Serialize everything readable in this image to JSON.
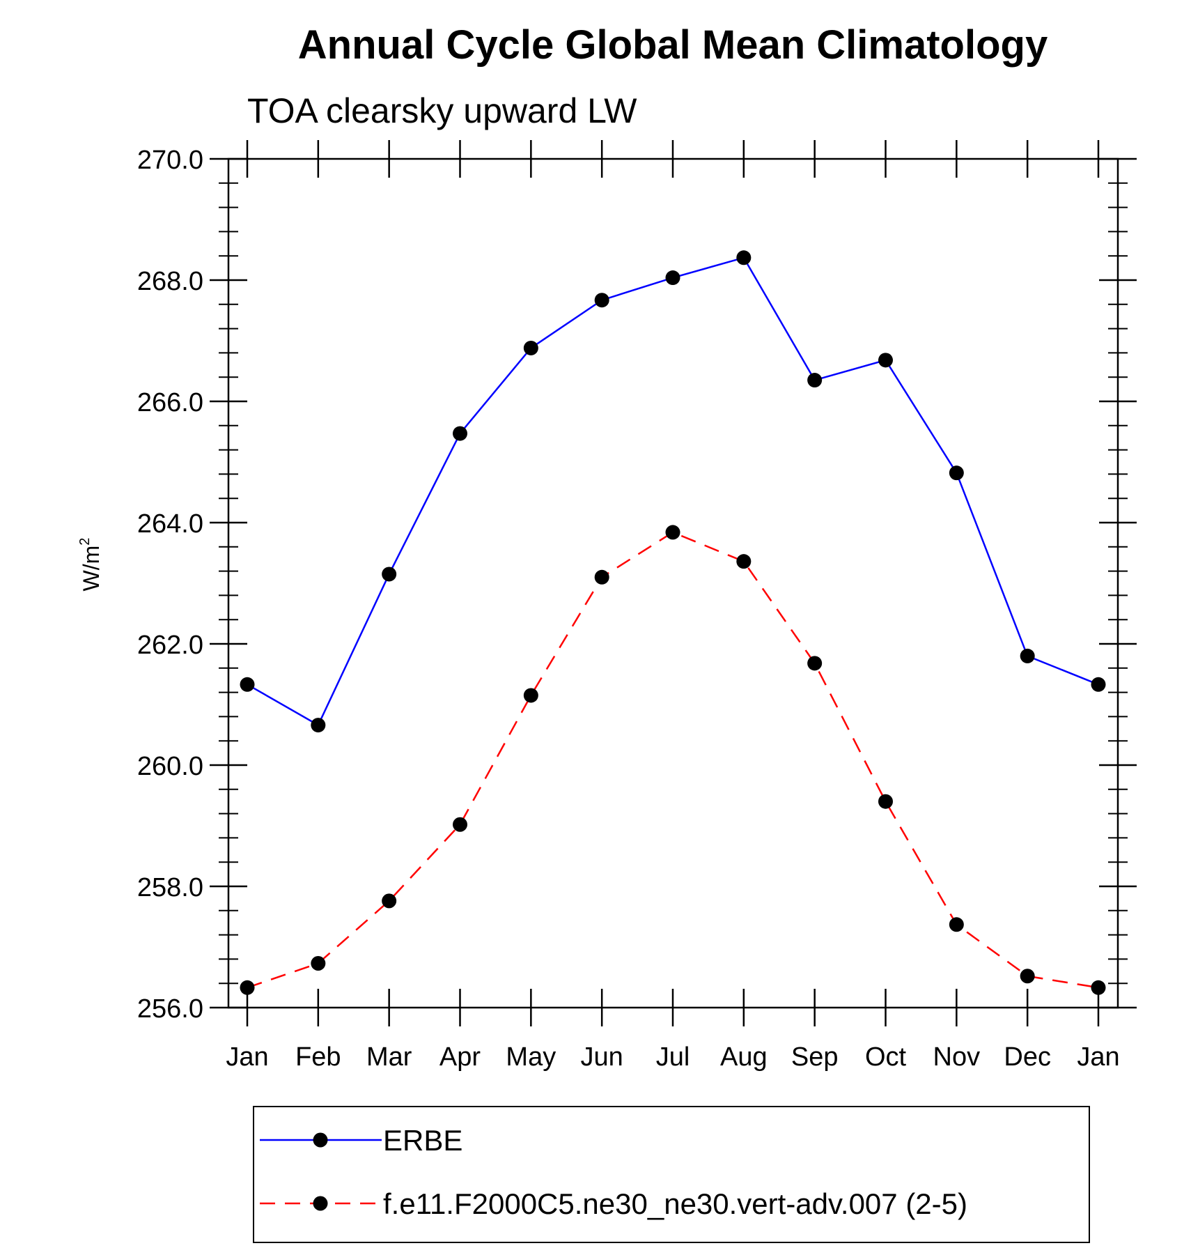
{
  "chart_data": {
    "type": "line",
    "title": "Annual Cycle Global Mean Climatology",
    "subtitle": "TOA clearsky upward LW",
    "ylabel": "W/m",
    "ylabel_sup": "2",
    "ylim": [
      256,
      270
    ],
    "yticks": [
      "256.0",
      "258.0",
      "260.0",
      "262.0",
      "264.0",
      "266.0",
      "268.0",
      "270.0"
    ],
    "categories": [
      "Jan",
      "Feb",
      "Mar",
      "Apr",
      "May",
      "Jun",
      "Jul",
      "Aug",
      "Sep",
      "Oct",
      "Nov",
      "Dec",
      "Jan"
    ],
    "series": [
      {
        "name": "ERBE",
        "color": "#0000ff",
        "dash": "solid",
        "values": [
          261.33,
          260.66,
          263.15,
          265.47,
          266.88,
          267.67,
          268.04,
          268.37,
          266.35,
          266.68,
          264.82,
          261.8,
          261.33
        ]
      },
      {
        "name": "f.e11.F2000C5.ne30_ne30.vert-adv.007 (2-5)",
        "color": "#ff0000",
        "dash": "dashed",
        "values": [
          256.33,
          256.73,
          257.76,
          259.02,
          261.15,
          263.1,
          263.84,
          263.36,
          261.68,
          259.4,
          257.37,
          256.52,
          256.33
        ]
      }
    ],
    "grid": false,
    "legend_position": "bottom"
  }
}
